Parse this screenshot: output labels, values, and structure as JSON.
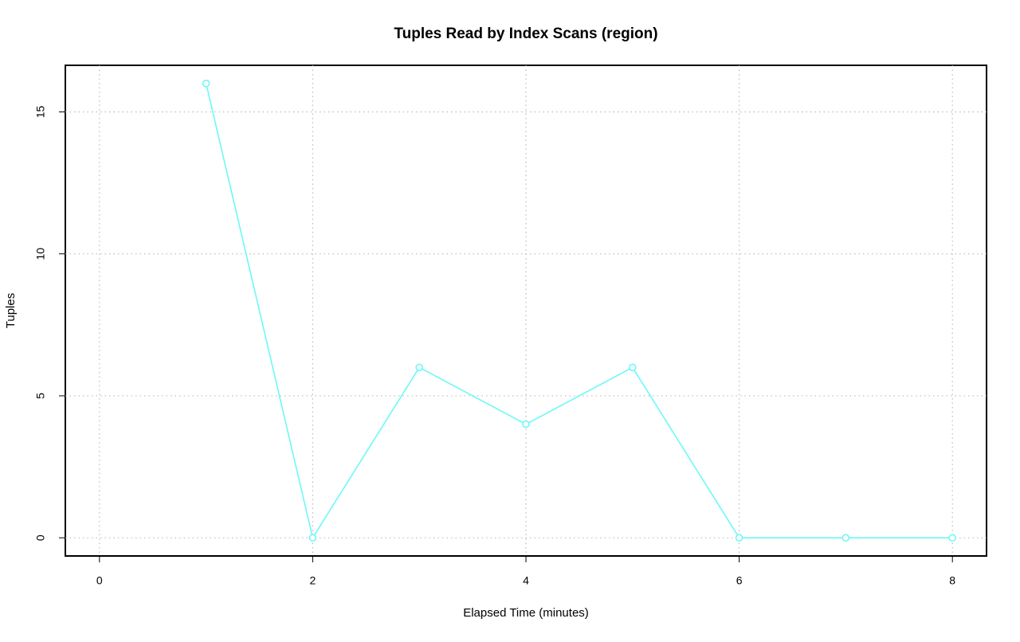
{
  "chart_data": {
    "type": "line",
    "title": "Tuples Read by Index Scans (region)",
    "x_label": "Elapsed Time (minutes)",
    "y_label": "Tuples",
    "x": [
      1,
      2,
      3,
      4,
      5,
      6,
      7,
      8
    ],
    "series": [
      {
        "name": "region",
        "color": "#6ff7f7",
        "values": [
          16,
          0,
          6,
          4,
          6,
          0,
          0,
          0
        ]
      }
    ],
    "xlim": [
      -0.32,
      8.32
    ],
    "xticks": [
      0,
      2,
      4,
      6,
      8
    ],
    "ylim": [
      -0.64,
      16.64
    ],
    "yticks": [
      0,
      5,
      10,
      15
    ],
    "grid": true
  }
}
